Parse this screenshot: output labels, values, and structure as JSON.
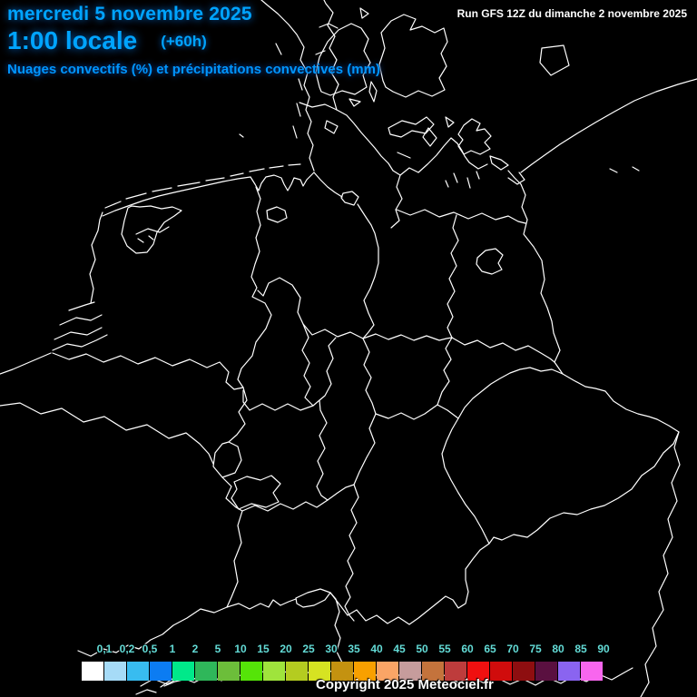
{
  "header": {
    "date_line": "mercredi 5 novembre 2025",
    "time_line": "1:00 locale",
    "offset_label": "(+60h)",
    "subtitle": "Nuages convectifs (%) et précipitations convectives (mm)",
    "run_info": "Run GFS 12Z du dimanche 2 novembre 2025"
  },
  "footer": {
    "copyright": "Copyright 2025 Meteociel.fr"
  },
  "colors": {
    "background": "#000000",
    "map_line": "#FFFFFF",
    "header_text": "#00A4FF",
    "subtitle_text": "#0096FF",
    "run_text": "#FFFFFF",
    "legend_label": "#63DBD6"
  },
  "legend": {
    "labels": [
      "0,1",
      "0,2",
      "0,5",
      "1",
      "2",
      "5",
      "10",
      "15",
      "20",
      "25",
      "30",
      "35",
      "40",
      "45",
      "50",
      "55",
      "60",
      "65",
      "70",
      "75",
      "80",
      "85",
      "90"
    ],
    "swatches": [
      "#FFFFFF",
      "#A6DBF7",
      "#38BCF0",
      "#0C7CF2",
      "#00E98A",
      "#2FB75A",
      "#6CBE3A",
      "#55E408",
      "#9FE43C",
      "#B4CC20",
      "#D6E322",
      "#C49210",
      "#F8A000",
      "#FAA566",
      "#C69C9C",
      "#C4733C",
      "#BE3C3C",
      "#F01010",
      "#D00C0C",
      "#8E0E10",
      "#5A1040",
      "#8A64F0",
      "#F866EE"
    ]
  }
}
